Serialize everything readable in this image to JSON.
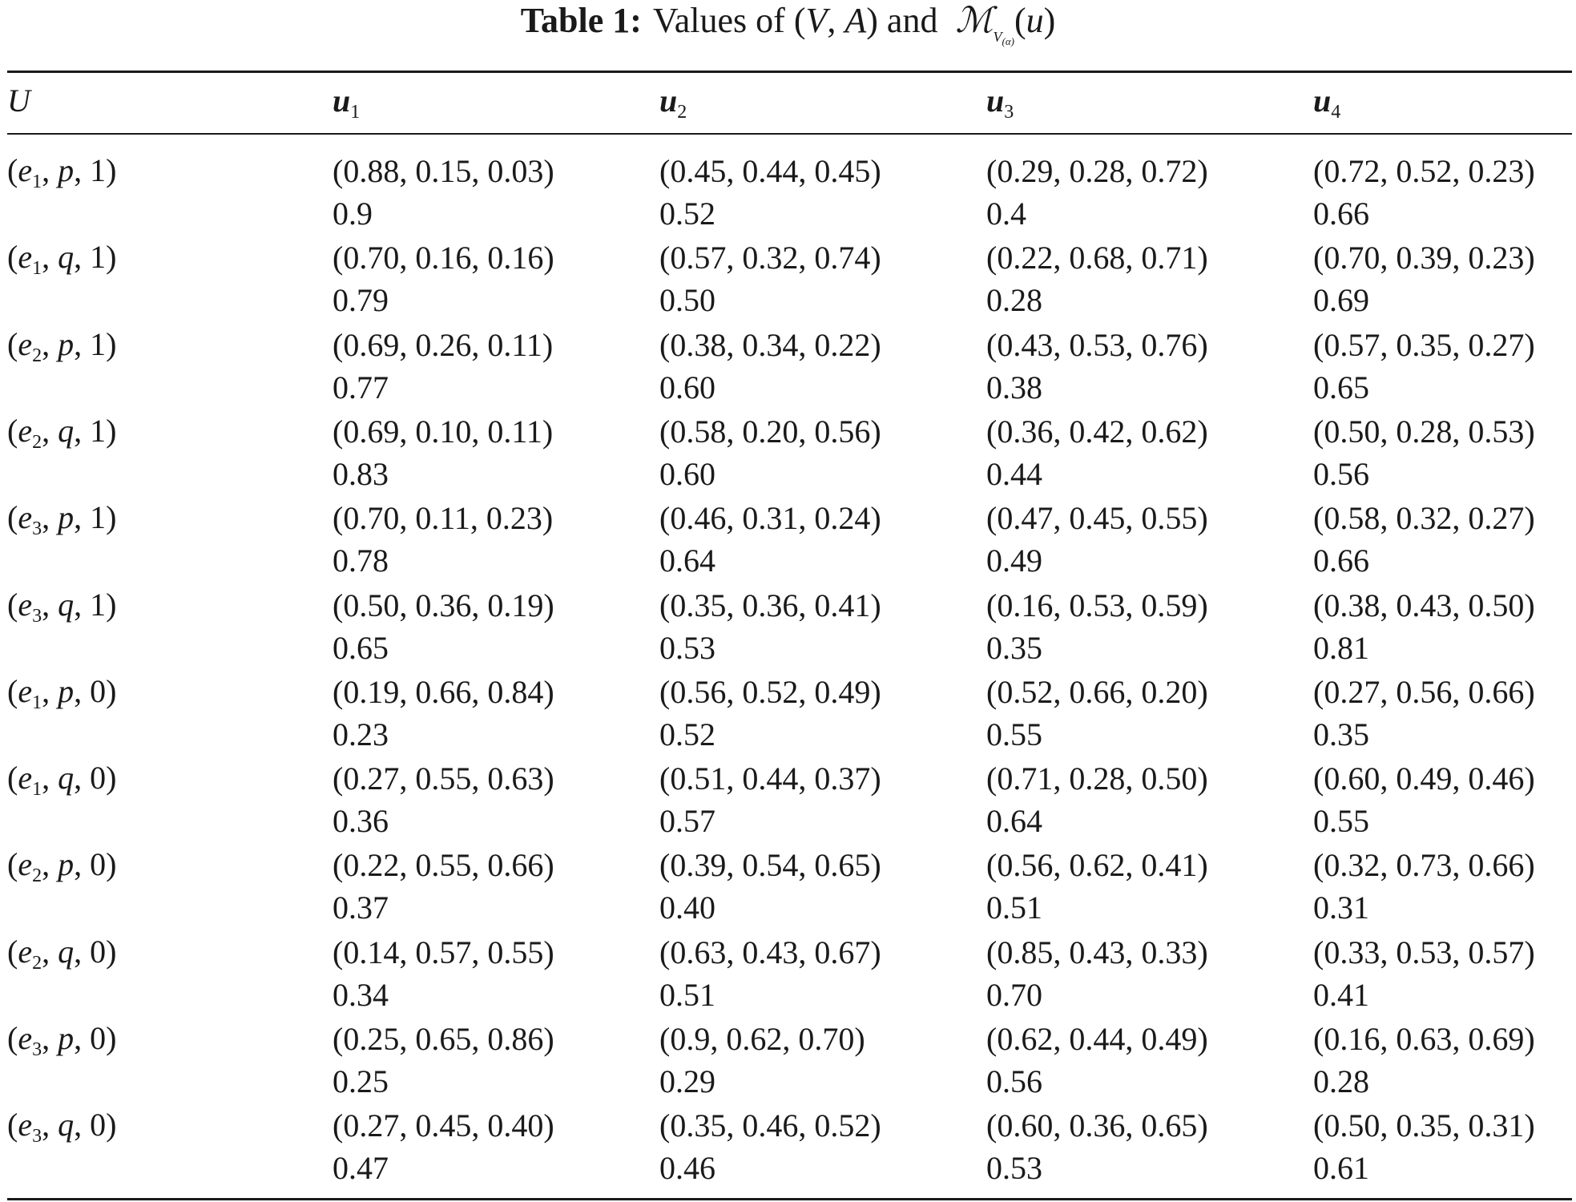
{
  "caption": {
    "label": "Table 1:",
    "text_prefix": "Values of (",
    "var_v": "V",
    "sep": ", ",
    "var_a": "A",
    "text_middle": ") and",
    "script_m": "ℳ",
    "sub_v": "V",
    "sub_alpha": "(α)",
    "arg_open": "(",
    "arg_u": "u",
    "arg_close": ")"
  },
  "header": {
    "row_label": "U",
    "columns": [
      {
        "base": "u",
        "index": "1"
      },
      {
        "base": "u",
        "index": "2"
      },
      {
        "base": "u",
        "index": "3"
      },
      {
        "base": "u",
        "index": "4"
      }
    ]
  },
  "rows": [
    {
      "e": "e",
      "e_idx": "1",
      "p": "p",
      "bit": "1",
      "cells": [
        [
          "(0.88, 0.15, 0.03)",
          "0.9"
        ],
        [
          "(0.45, 0.44, 0.45)",
          "0.52"
        ],
        [
          "(0.29, 0.28, 0.72)",
          "0.4"
        ],
        [
          "(0.72, 0.52, 0.23)",
          "0.66"
        ]
      ]
    },
    {
      "e": "e",
      "e_idx": "1",
      "p": "q",
      "bit": "1",
      "cells": [
        [
          "(0.70, 0.16, 0.16)",
          "0.79"
        ],
        [
          "(0.57, 0.32, 0.74)",
          "0.50"
        ],
        [
          "(0.22, 0.68, 0.71)",
          "0.28"
        ],
        [
          "(0.70, 0.39, 0.23)",
          "0.69"
        ]
      ]
    },
    {
      "e": "e",
      "e_idx": "2",
      "p": "p",
      "bit": "1",
      "cells": [
        [
          "(0.69, 0.26, 0.11)",
          "0.77"
        ],
        [
          "(0.38, 0.34, 0.22)",
          "0.60"
        ],
        [
          "(0.43, 0.53, 0.76)",
          "0.38"
        ],
        [
          "(0.57, 0.35, 0.27)",
          "0.65"
        ]
      ]
    },
    {
      "e": "e",
      "e_idx": "2",
      "p": "q",
      "bit": "1",
      "cells": [
        [
          "(0.69, 0.10, 0.11)",
          "0.83"
        ],
        [
          "(0.58, 0.20, 0.56)",
          "0.60"
        ],
        [
          "(0.36, 0.42, 0.62)",
          "0.44"
        ],
        [
          "(0.50, 0.28, 0.53)",
          "0.56"
        ]
      ]
    },
    {
      "e": "e",
      "e_idx": "3",
      "p": "p",
      "bit": "1",
      "cells": [
        [
          "(0.70, 0.11, 0.23)",
          "0.78"
        ],
        [
          "(0.46, 0.31, 0.24)",
          "0.64"
        ],
        [
          "(0.47, 0.45, 0.55)",
          "0.49"
        ],
        [
          "(0.58, 0.32, 0.27)",
          "0.66"
        ]
      ]
    },
    {
      "e": "e",
      "e_idx": "3",
      "p": "q",
      "bit": "1",
      "cells": [
        [
          "(0.50, 0.36, 0.19)",
          "0.65"
        ],
        [
          "(0.35, 0.36, 0.41)",
          "0.53"
        ],
        [
          "(0.16, 0.53, 0.59)",
          "0.35"
        ],
        [
          "(0.38, 0.43, 0.50)",
          "0.81"
        ]
      ]
    },
    {
      "e": "e",
      "e_idx": "1",
      "p": "p",
      "bit": "0",
      "cells": [
        [
          "(0.19, 0.66, 0.84)",
          "0.23"
        ],
        [
          "(0.56, 0.52, 0.49)",
          "0.52"
        ],
        [
          "(0.52, 0.66, 0.20)",
          "0.55"
        ],
        [
          "(0.27, 0.56, 0.66)",
          "0.35"
        ]
      ]
    },
    {
      "e": "e",
      "e_idx": "1",
      "p": "q",
      "bit": "0",
      "cells": [
        [
          "(0.27, 0.55, 0.63)",
          "0.36"
        ],
        [
          "(0.51, 0.44, 0.37)",
          "0.57"
        ],
        [
          "(0.71, 0.28, 0.50)",
          "0.64"
        ],
        [
          "(0.60, 0.49, 0.46)",
          "0.55"
        ]
      ]
    },
    {
      "e": "e",
      "e_idx": "2",
      "p": "p",
      "bit": "0",
      "cells": [
        [
          "(0.22, 0.55, 0.66)",
          "0.37"
        ],
        [
          "(0.39, 0.54, 0.65)",
          "0.40"
        ],
        [
          "(0.56, 0.62, 0.41)",
          "0.51"
        ],
        [
          "(0.32, 0.73, 0.66)",
          "0.31"
        ]
      ]
    },
    {
      "e": "e",
      "e_idx": "2",
      "p": "q",
      "bit": "0",
      "cells": [
        [
          "(0.14, 0.57, 0.55)",
          "0.34"
        ],
        [
          "(0.63, 0.43, 0.67)",
          "0.51"
        ],
        [
          "(0.85, 0.43, 0.33)",
          "0.70"
        ],
        [
          "(0.33, 0.53, 0.57)",
          "0.41"
        ]
      ]
    },
    {
      "e": "e",
      "e_idx": "3",
      "p": "p",
      "bit": "0",
      "cells": [
        [
          "(0.25, 0.65, 0.86)",
          "0.25"
        ],
        [
          "(0.9, 0.62, 0.70)",
          "0.29"
        ],
        [
          "(0.62, 0.44, 0.49)",
          "0.56"
        ],
        [
          "(0.16, 0.63, 0.69)",
          "0.28"
        ]
      ]
    },
    {
      "e": "e",
      "e_idx": "3",
      "p": "q",
      "bit": "0",
      "cells": [
        [
          "(0.27, 0.45, 0.40)",
          "0.47"
        ],
        [
          "(0.35, 0.46, 0.52)",
          "0.46"
        ],
        [
          "(0.60, 0.36, 0.65)",
          "0.53"
        ],
        [
          "(0.50, 0.35, 0.31)",
          "0.61"
        ]
      ]
    }
  ]
}
